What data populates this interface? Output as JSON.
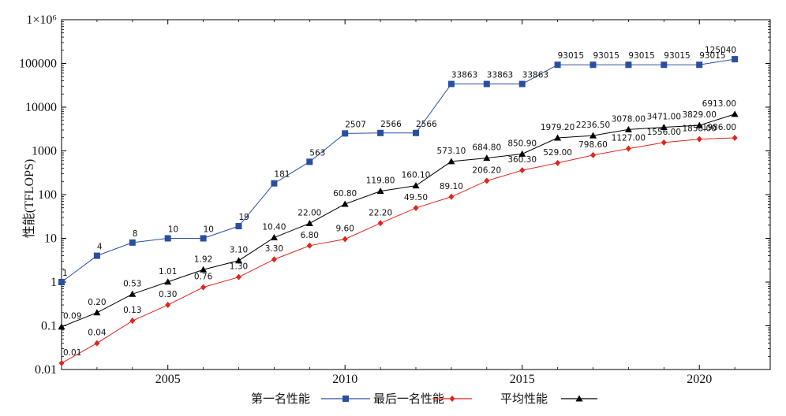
{
  "chart_data": {
    "type": "line",
    "ylabel": "性能(TFLOPS)",
    "xlabel": "",
    "yscale": "log",
    "xlim": [
      2002,
      2022
    ],
    "ylim": [
      0.01,
      1000000
    ],
    "x_ticks": [
      {
        "value": 2005,
        "label": "2005"
      },
      {
        "value": 2010,
        "label": "2010"
      },
      {
        "value": 2015,
        "label": "2015"
      },
      {
        "value": 2020,
        "label": "2020"
      }
    ],
    "y_ticks": [
      {
        "value": 0.01,
        "label": "0.01"
      },
      {
        "value": 0.1,
        "label": "0.1"
      },
      {
        "value": 1,
        "label": "1"
      },
      {
        "value": 10,
        "label": "10"
      },
      {
        "value": 100,
        "label": "100"
      },
      {
        "value": 1000,
        "label": "1000"
      },
      {
        "value": 10000,
        "label": "10000"
      },
      {
        "value": 100000,
        "label": "100000"
      },
      {
        "value": 1000000,
        "label": "1×10⁶"
      }
    ],
    "x": [
      2002,
      2003,
      2004,
      2005,
      2006,
      2007,
      2008,
      2009,
      2010,
      2011,
      2012,
      2013,
      2014,
      2015,
      2016,
      2017,
      2018,
      2019,
      2020,
      2021
    ],
    "series": [
      {
        "name": "第一名性能",
        "color": "#2a4ea0",
        "marker": "square",
        "values": [
          1,
          4,
          8,
          10,
          10,
          19,
          181,
          563,
          2507,
          2566,
          2566,
          33863,
          33863,
          33863,
          93015,
          93015,
          93015,
          93015,
          93015,
          125040
        ],
        "labels": [
          "1",
          "4",
          "8",
          "10",
          "10",
          "19",
          "181",
          "563",
          "2507",
          "2566",
          "2566",
          "33863",
          "33863",
          "33863",
          "93015",
          "93015",
          "93015",
          "93015",
          "93015",
          "125040"
        ]
      },
      {
        "name": "最后一名性能",
        "color": "#e0251b",
        "marker": "diamond",
        "values": [
          0.014,
          0.04,
          0.13,
          0.3,
          0.76,
          1.3,
          3.3,
          6.8,
          9.6,
          22.2,
          49.5,
          89.1,
          206.2,
          360.3,
          529,
          798.6,
          1127,
          1556,
          1858,
          1986
        ],
        "labels": [
          "0.01",
          "0.04",
          "0.13",
          "0.30",
          "0.76",
          "1.30",
          "3.30",
          "6.80",
          "9.60",
          "22.20",
          "49.50",
          "89.10",
          "206.20",
          "360.30",
          "529.00",
          "798.60",
          "1127.00",
          "1556.00",
          "1858.00",
          "1986.00"
        ]
      },
      {
        "name": "平均性能",
        "color": "#000000",
        "marker": "triangle",
        "values": [
          0.095,
          0.2,
          0.53,
          1.01,
          1.92,
          3.1,
          10.4,
          22,
          60.8,
          119.8,
          160.1,
          573.1,
          684.8,
          850.9,
          1979.2,
          2236.5,
          3078,
          3471,
          3829,
          6913
        ],
        "labels": [
          "0.09",
          "0.20",
          "0.53",
          "1.01",
          "1.92",
          "3.10",
          "10.40",
          "22.00",
          "60.80",
          "119.80",
          "160.10",
          "573.10",
          "684.80",
          "850.90",
          "1979.20",
          "2236.50",
          "3078.00",
          "3471.00",
          "3829.00",
          "6913.00"
        ]
      }
    ],
    "legend_position": "bottom-center",
    "grid": false
  }
}
